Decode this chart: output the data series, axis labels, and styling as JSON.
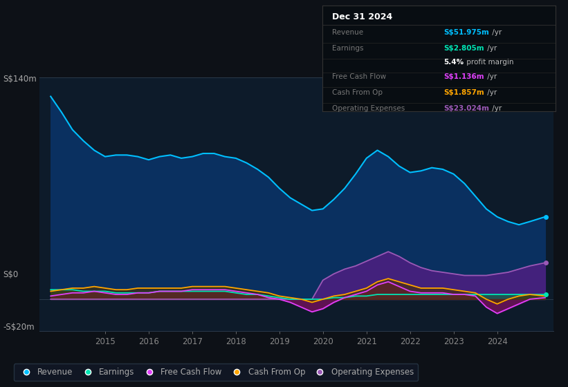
{
  "bg_color": "#0d1117",
  "chart_bg": "#0d1b2a",
  "ylim": [
    -20,
    140
  ],
  "xlim": [
    2013.5,
    2025.3
  ],
  "xticks": [
    2015,
    2016,
    2017,
    2018,
    2019,
    2020,
    2021,
    2022,
    2023,
    2024
  ],
  "revenue_color": "#00bfff",
  "earnings_color": "#00e5b4",
  "fcf_color": "#e040fb",
  "cashfromop_color": "#ffa500",
  "opex_color": "#9b59b6",
  "revenue_fill": "#0a3060",
  "earnings_fill": "#1a5c4a",
  "fcf_fill": "#7b1060",
  "cashfromop_fill": "#4a3000",
  "opex_fill": "#4a2080",
  "legend_items": [
    "Revenue",
    "Earnings",
    "Free Cash Flow",
    "Cash From Op",
    "Operating Expenses"
  ],
  "legend_colors": [
    "#00bfff",
    "#00e5b4",
    "#e040fb",
    "#ffa500",
    "#9b59b6"
  ],
  "info_box": {
    "date": "Dec 31 2024",
    "rows": [
      {
        "label": "Revenue",
        "value": "S$51.975m",
        "value_color": "#00bfff",
        "suffix": " /yr"
      },
      {
        "label": "Earnings",
        "value": "S$2.805m",
        "value_color": "#00e5b4",
        "suffix": " /yr"
      },
      {
        "label": "",
        "value": "5.4%",
        "value_color": "#ffffff",
        "suffix": " profit margin"
      },
      {
        "label": "Free Cash Flow",
        "value": "S$1.136m",
        "value_color": "#e040fb",
        "suffix": " /yr"
      },
      {
        "label": "Cash From Op",
        "value": "S$1.857m",
        "value_color": "#ffa500",
        "suffix": " /yr"
      },
      {
        "label": "Operating Expenses",
        "value": "S$23.024m",
        "value_color": "#9b59b6",
        "suffix": " /yr"
      }
    ]
  },
  "revenue_x": [
    2013.75,
    2014.0,
    2014.25,
    2014.5,
    2014.75,
    2015.0,
    2015.25,
    2015.5,
    2015.75,
    2016.0,
    2016.25,
    2016.5,
    2016.75,
    2017.0,
    2017.25,
    2017.5,
    2017.75,
    2018.0,
    2018.25,
    2018.5,
    2018.75,
    2019.0,
    2019.25,
    2019.5,
    2019.75,
    2020.0,
    2020.25,
    2020.5,
    2020.75,
    2021.0,
    2021.25,
    2021.5,
    2021.75,
    2022.0,
    2022.25,
    2022.5,
    2022.75,
    2023.0,
    2023.25,
    2023.5,
    2023.75,
    2024.0,
    2024.25,
    2024.5,
    2024.75,
    2025.1
  ],
  "revenue_y": [
    128,
    118,
    107,
    100,
    94,
    90,
    91,
    91,
    90,
    88,
    90,
    91,
    89,
    90,
    92,
    92,
    90,
    89,
    86,
    82,
    77,
    70,
    64,
    60,
    56,
    57,
    63,
    70,
    79,
    89,
    94,
    90,
    84,
    80,
    81,
    83,
    82,
    79,
    73,
    65,
    57,
    52,
    49,
    47,
    49,
    52
  ],
  "earnings_x": [
    2013.75,
    2014.0,
    2014.25,
    2014.5,
    2014.75,
    2015.0,
    2015.25,
    2015.5,
    2015.75,
    2016.0,
    2016.25,
    2016.5,
    2016.75,
    2017.0,
    2017.25,
    2017.5,
    2017.75,
    2018.0,
    2018.25,
    2018.5,
    2018.75,
    2019.0,
    2019.25,
    2019.5,
    2019.75,
    2020.0,
    2020.25,
    2020.5,
    2020.75,
    2021.0,
    2021.25,
    2021.5,
    2021.75,
    2022.0,
    2022.25,
    2022.5,
    2022.75,
    2023.0,
    2023.25,
    2023.5,
    2023.75,
    2024.0,
    2024.25,
    2024.5,
    2024.75,
    2025.1
  ],
  "earnings_y": [
    6,
    6,
    6,
    5,
    5,
    5,
    4,
    4,
    4,
    4,
    5,
    5,
    5,
    5,
    5,
    5,
    5,
    4,
    3,
    3,
    2,
    1,
    0,
    0,
    0,
    0,
    1,
    1,
    2,
    2,
    3,
    3,
    3,
    3,
    3,
    3,
    3,
    3,
    3,
    3,
    3,
    3,
    3,
    3,
    3,
    3
  ],
  "fcf_x": [
    2013.75,
    2014.0,
    2014.25,
    2014.5,
    2014.75,
    2015.0,
    2015.25,
    2015.5,
    2015.75,
    2016.0,
    2016.25,
    2016.5,
    2016.75,
    2017.0,
    2017.25,
    2017.5,
    2017.75,
    2018.0,
    2018.25,
    2018.5,
    2018.75,
    2019.0,
    2019.25,
    2019.5,
    2019.75,
    2020.0,
    2020.25,
    2020.5,
    2020.75,
    2021.0,
    2021.25,
    2021.5,
    2021.75,
    2022.0,
    2022.25,
    2022.5,
    2022.75,
    2023.0,
    2023.25,
    2023.5,
    2023.75,
    2024.0,
    2024.25,
    2024.5,
    2024.75,
    2025.1
  ],
  "fcf_y": [
    2,
    3,
    4,
    4,
    5,
    4,
    3,
    3,
    4,
    4,
    5,
    5,
    5,
    6,
    6,
    6,
    6,
    5,
    4,
    3,
    1,
    0,
    -2,
    -5,
    -8,
    -6,
    -2,
    1,
    3,
    5,
    9,
    11,
    8,
    5,
    4,
    4,
    4,
    3,
    3,
    2,
    -5,
    -9,
    -6,
    -3,
    0,
    1
  ],
  "cashfromop_x": [
    2013.75,
    2014.0,
    2014.25,
    2014.5,
    2014.75,
    2015.0,
    2015.25,
    2015.5,
    2015.75,
    2016.0,
    2016.25,
    2016.5,
    2016.75,
    2017.0,
    2017.25,
    2017.5,
    2017.75,
    2018.0,
    2018.25,
    2018.5,
    2018.75,
    2019.0,
    2019.25,
    2019.5,
    2019.75,
    2020.0,
    2020.25,
    2020.5,
    2020.75,
    2021.0,
    2021.25,
    2021.5,
    2021.75,
    2022.0,
    2022.25,
    2022.5,
    2022.75,
    2023.0,
    2023.25,
    2023.5,
    2023.75,
    2024.0,
    2024.25,
    2024.5,
    2024.75,
    2025.1
  ],
  "cashfromop_y": [
    5,
    6,
    7,
    7,
    8,
    7,
    6,
    6,
    7,
    7,
    7,
    7,
    7,
    8,
    8,
    8,
    8,
    7,
    6,
    5,
    4,
    2,
    1,
    0,
    -2,
    0,
    2,
    3,
    5,
    7,
    11,
    13,
    11,
    9,
    7,
    7,
    7,
    6,
    5,
    4,
    0,
    -3,
    0,
    2,
    3,
    2
  ],
  "opex_x": [
    2013.75,
    2014.0,
    2014.25,
    2014.5,
    2014.75,
    2015.0,
    2015.25,
    2015.5,
    2015.75,
    2016.0,
    2016.25,
    2016.5,
    2016.75,
    2017.0,
    2017.25,
    2017.5,
    2017.75,
    2018.0,
    2018.25,
    2018.5,
    2018.75,
    2019.0,
    2019.25,
    2019.5,
    2019.75,
    2020.0,
    2020.25,
    2020.5,
    2020.75,
    2021.0,
    2021.25,
    2021.5,
    2021.75,
    2022.0,
    2022.25,
    2022.5,
    2022.75,
    2023.0,
    2023.25,
    2023.5,
    2023.75,
    2024.0,
    2024.25,
    2024.5,
    2024.75,
    2025.1
  ],
  "opex_y": [
    0,
    0,
    0,
    0,
    0,
    0,
    0,
    0,
    0,
    0,
    0,
    0,
    0,
    0,
    0,
    0,
    0,
    0,
    0,
    0,
    0,
    0,
    0,
    0,
    0,
    12,
    16,
    19,
    21,
    24,
    27,
    30,
    27,
    23,
    20,
    18,
    17,
    16,
    15,
    15,
    15,
    16,
    17,
    19,
    21,
    23
  ]
}
